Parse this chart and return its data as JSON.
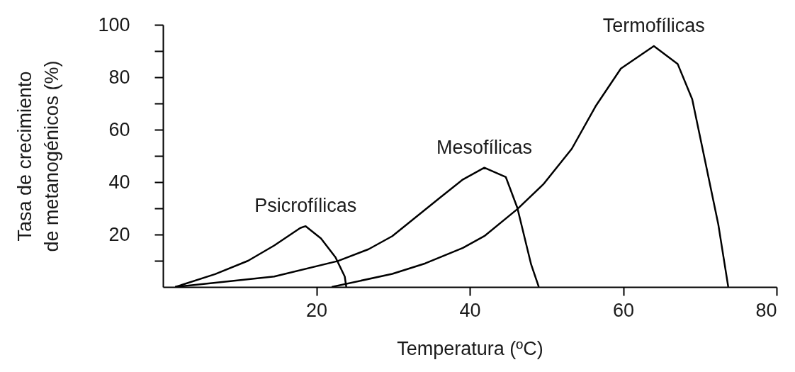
{
  "chart_data": {
    "type": "line",
    "xlabel": "Temperatura (ºC)",
    "ylabel": "Tasa de crecimiento\nde metanogénicos (%)",
    "xlim": [
      0,
      80
    ],
    "xticks": [
      20,
      40,
      60,
      80
    ],
    "ylim": [
      0,
      100
    ],
    "yticks": [
      {
        "value": 10,
        "label": null
      },
      20,
      {
        "value": 30,
        "label": null
      },
      40,
      {
        "value": 50,
        "label": null
      },
      60,
      {
        "value": 70,
        "label": null
      },
      80,
      {
        "value": 90,
        "label": null
      },
      100
    ],
    "marker": "none",
    "line_style": "solid",
    "series": [
      {
        "name": "Psicrofílicas",
        "color": "#000000",
        "x": [
          1.6,
          6.8,
          11.1,
          14.5,
          17.9,
          18.6,
          20.6,
          22.5,
          23.7,
          23.9
        ],
        "values": [
          0,
          4.9,
          10,
          15.8,
          22.5,
          23.2,
          18.5,
          11.3,
          4,
          0
        ]
      },
      {
        "name": "Mesofílicas",
        "color": "#000000",
        "x": [
          1.6,
          14.5,
          22.8,
          26.8,
          29.9,
          36,
          39.1,
          41.9,
          44.7,
          46.2,
          48,
          49
        ],
        "values": [
          0,
          4,
          9.9,
          14.4,
          19.4,
          33.8,
          41,
          45.5,
          41.9,
          30.2,
          8.6,
          0
        ]
      },
      {
        "name": "Termofílicas",
        "color": "#000000",
        "x": [
          22,
          29.9,
          34.2,
          39.1,
          41.9,
          46.2,
          49.6,
          53.3,
          56.4,
          59.7,
          64,
          67.1,
          69,
          70.8,
          72.4,
          73.7
        ],
        "values": [
          0,
          5,
          9,
          14.9,
          19.4,
          29.7,
          39.2,
          52.7,
          68.9,
          83.3,
          91.9,
          85.1,
          71.6,
          46.4,
          23.9,
          0
        ]
      }
    ]
  }
}
